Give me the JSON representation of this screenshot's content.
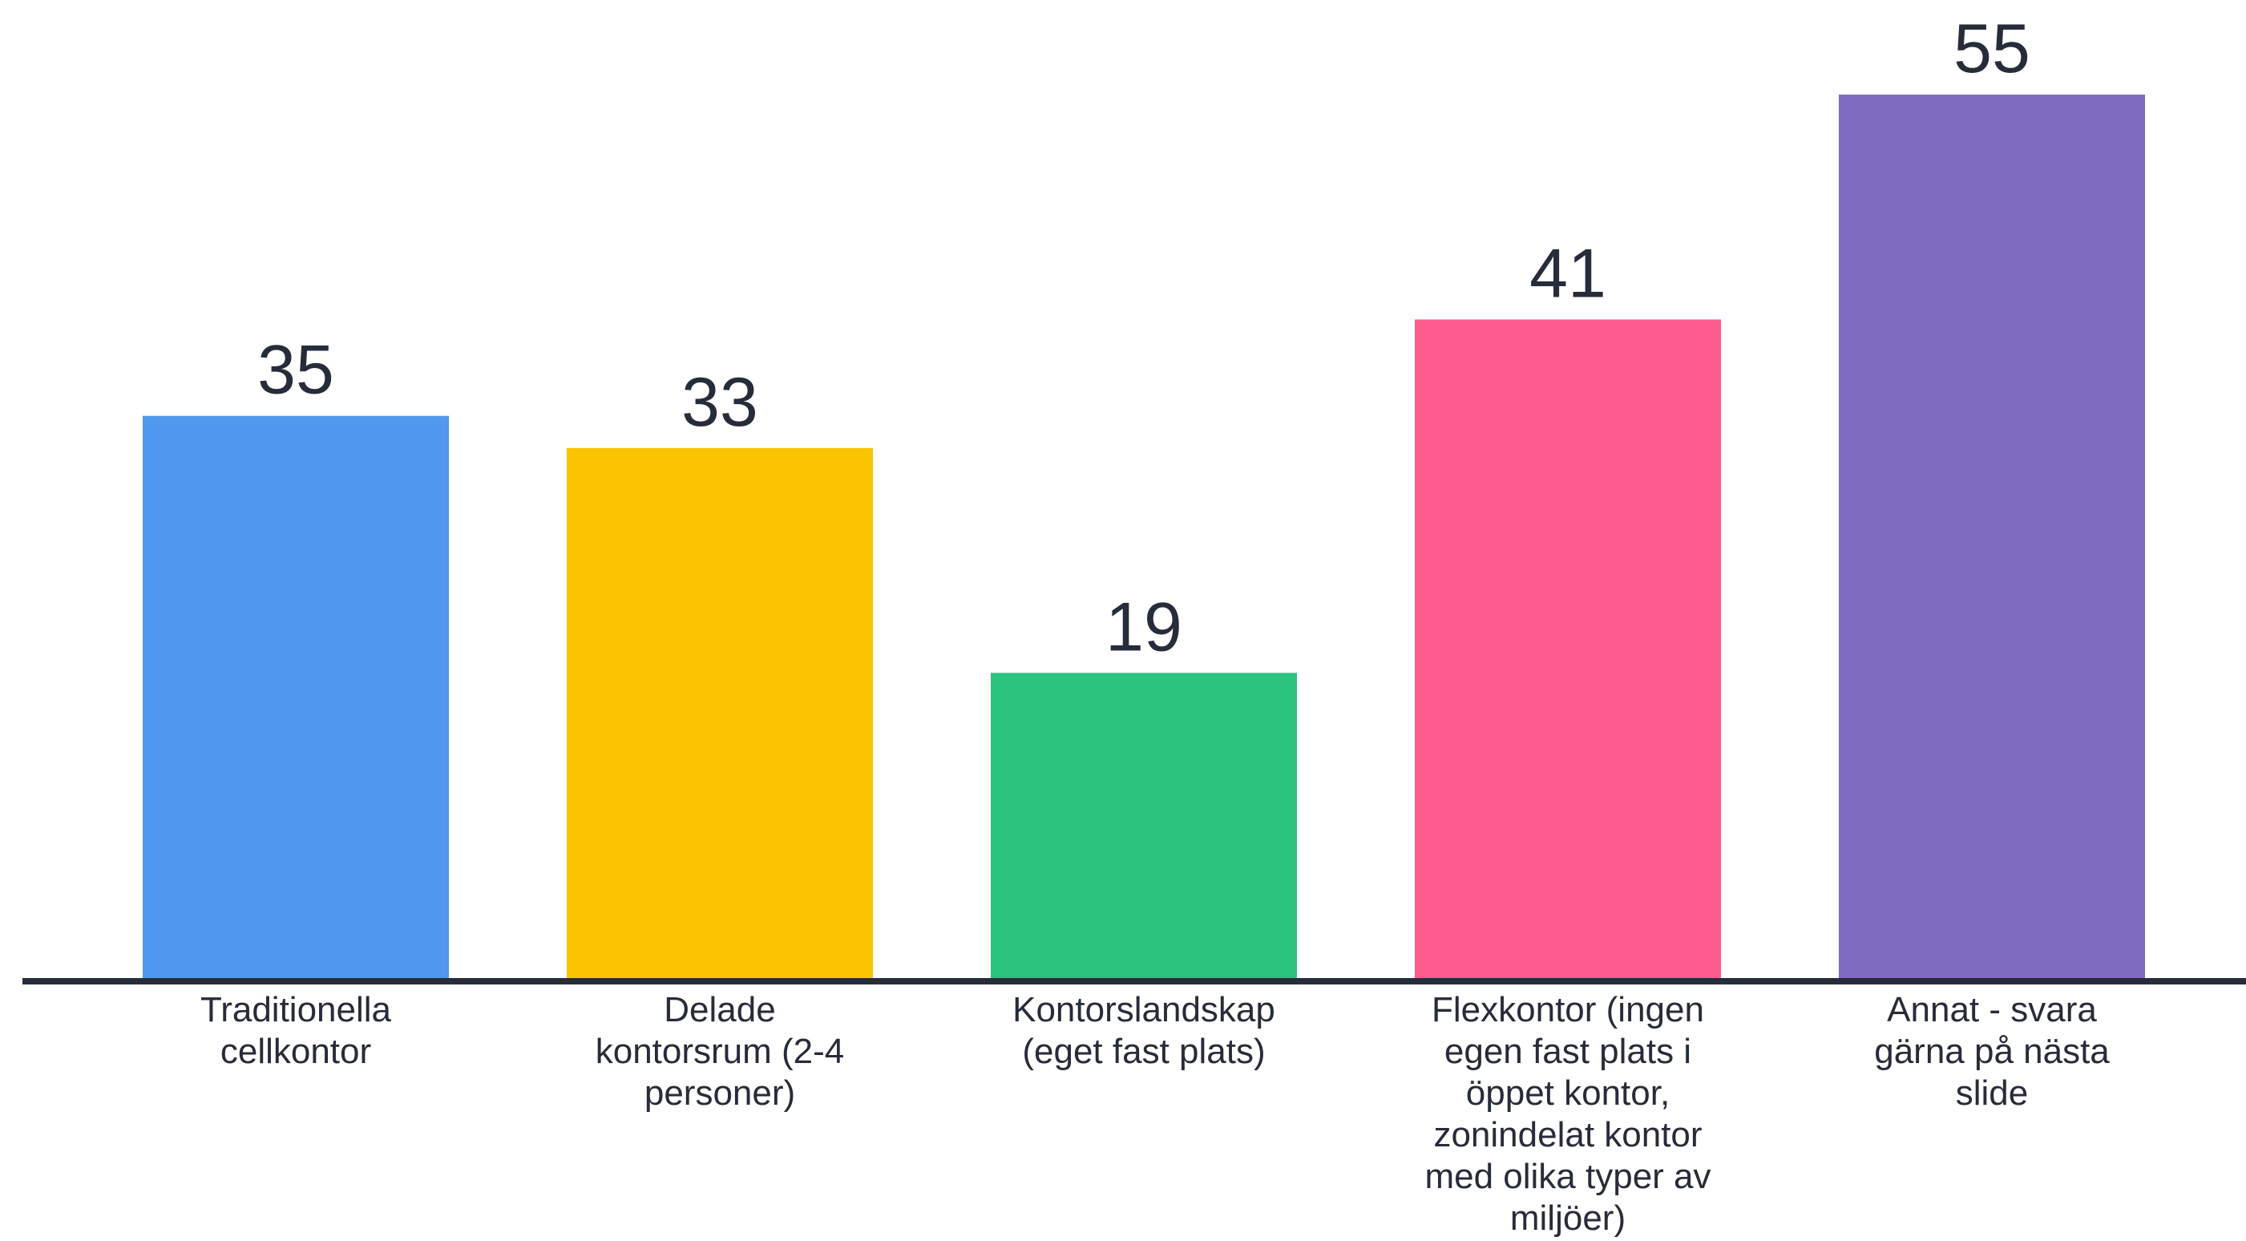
{
  "chart_data": {
    "type": "bar",
    "title": "",
    "xlabel": "",
    "ylabel": "",
    "ylim": [
      0,
      55
    ],
    "grid": false,
    "legend": "none",
    "categories": [
      "Traditionella cellkontor",
      "Delade kontorsrum (2-4 personer)",
      "Kontorslandskap (eget fast plats)",
      "Flexkontor (ingen egen fast plats i öppet kontor, zonindelat kontor med olika typer av miljöer)",
      "Annat - svara gärna på nästa slide"
    ],
    "category_label_lines": [
      [
        "Traditionella",
        "cellkontor"
      ],
      [
        "Delade",
        "kontorsrum (2-4",
        "personer)"
      ],
      [
        "Kontorslandskap",
        "(eget fast plats)"
      ],
      [
        "Flexkontor (ingen",
        "egen fast plats i",
        "öppet kontor,",
        "zonindelat kontor",
        "med olika typer av",
        "miljöer)"
      ],
      [
        "Annat - svara",
        "gärna på nästa",
        "slide"
      ]
    ],
    "values": [
      35,
      33,
      19,
      41,
      55
    ],
    "colors": [
      "#4f99ee",
      "#fbc400",
      "#2bc47e",
      "#fe5b8f",
      "#7e6abf"
    ],
    "axis_color": "#272c3a"
  }
}
